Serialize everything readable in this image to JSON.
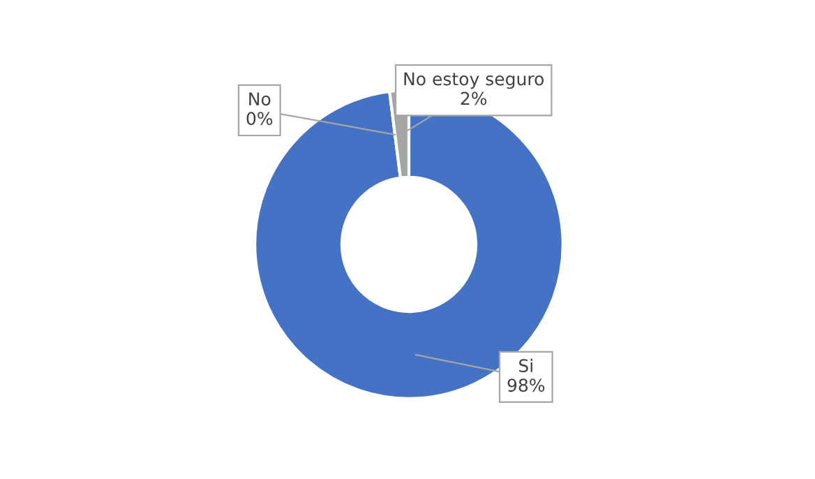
{
  "chart_data": {
    "type": "donut",
    "categories": [
      "Si",
      "No",
      "No estoy seguro"
    ],
    "values": [
      98,
      0,
      2
    ],
    "value_labels": [
      "98%",
      "0%",
      "2%"
    ],
    "colors": [
      "#4472c4",
      "#ed7d31",
      "#a5a5a5"
    ],
    "legend": false
  }
}
